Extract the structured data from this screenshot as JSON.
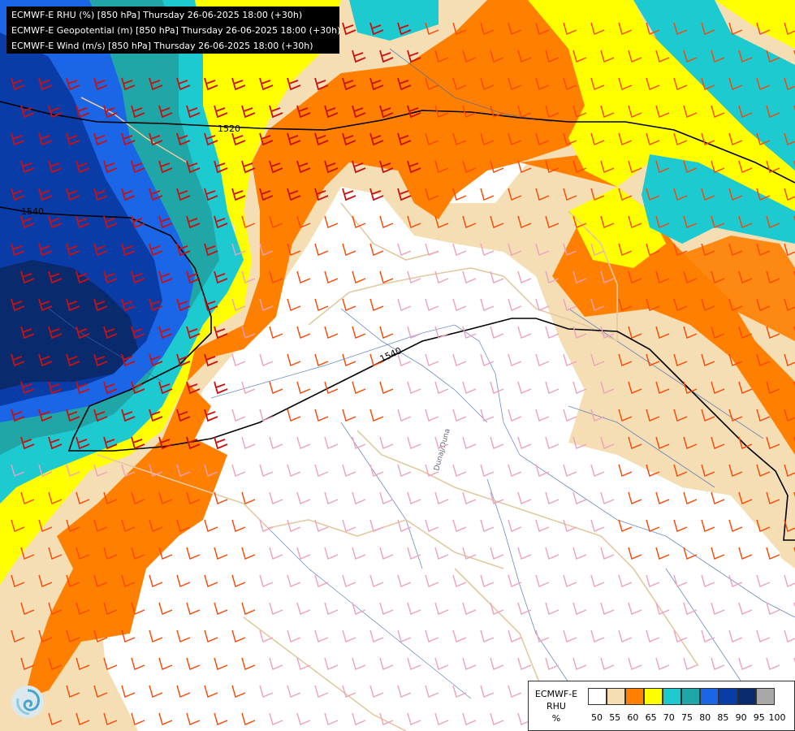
{
  "header": {
    "line1": "ECMWF-E RHU (%) [850 hPa] Thursday 26-06-2025 18:00 (+30h)",
    "line2": "ECMWF-E Geopotential (m) [850 hPa] Thursday 26-06-2025 18:00 (+30h)",
    "line3": "ECMWF-E Wind (m/s) [850 hPa] Thursday 26-06-2025 18:00 (+30h)"
  },
  "contours": {
    "label_1520": "1520",
    "label_1540_west": "1540",
    "label_1540_center": "1540"
  },
  "map_labels": {
    "river": "Dunaj/Duna"
  },
  "legend": {
    "title_line1": "ECMWF-E",
    "title_line2": "RHU",
    "title_line3": "%",
    "ticks": [
      "50",
      "55",
      "60",
      "65",
      "70",
      "75",
      "80",
      "85",
      "90",
      "95",
      "100"
    ],
    "colors": [
      "#ffffff",
      "#f5deb3",
      "#ff8000",
      "#ffff00",
      "#1ccad0",
      "#20a6a6",
      "#1a66e6",
      "#0a3ca8",
      "#0a2a6e",
      "#a8a8a8",
      "#6a6a6a"
    ]
  },
  "palette": {
    "wind_strong": "#cc1010",
    "wind_medium": "#ff4400",
    "wind_light": "#f0a0c0",
    "border": "#e3c9a0",
    "river": "#3c64b4",
    "geopotential_line": "#000000"
  },
  "icons": {
    "logo": "ecmwf-swirl-logo"
  }
}
